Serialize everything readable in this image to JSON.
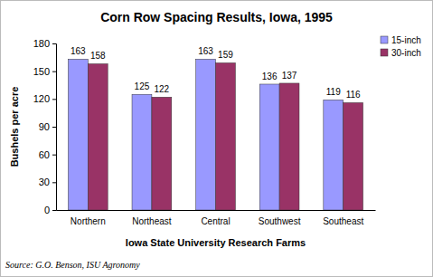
{
  "chart_data": {
    "type": "bar",
    "title": "Corn Row Spacing Results, Iowa, 1995",
    "x_label": "Iowa State University Research Farms",
    "y_label": "Bushels per acre",
    "source": "Source: G.O. Benson, ISU Agronomy",
    "categories": [
      "Northern",
      "Northeast",
      "Central",
      "Southwest",
      "Southeast"
    ],
    "series": [
      {
        "name": "15-inch",
        "color": "#9999ff",
        "values": [
          163,
          125,
          163,
          136,
          119
        ]
      },
      {
        "name": "30-inch",
        "color": "#993366",
        "values": [
          158,
          122,
          159,
          137,
          116
        ]
      }
    ],
    "ylim": [
      0,
      180
    ],
    "yticks": [
      0,
      30,
      60,
      90,
      120,
      150,
      180
    ],
    "grid": false,
    "legend": "top-right",
    "data_labels": true
  }
}
